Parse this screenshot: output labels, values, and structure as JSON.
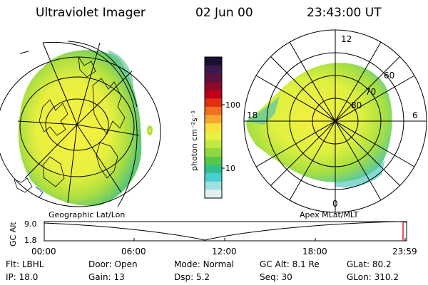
{
  "header": {
    "instrument": "Ultraviolet Imager",
    "date": "02 Jun 00",
    "time": "23:43:00 UT"
  },
  "colorbar": {
    "unit_label": "photon cm⁻²s⁻¹",
    "ticks": [
      "100",
      "10"
    ],
    "colors": [
      "#1a1030",
      "#3a1a50",
      "#5a1040",
      "#8a0a28",
      "#c00018",
      "#e03010",
      "#f07020",
      "#f8a830",
      "#f8e040",
      "#e8f040",
      "#c0e840",
      "#90d840",
      "#58c848",
      "#30c090",
      "#48d0d0",
      "#a0e0e0",
      "#e0f0f0"
    ]
  },
  "maps": {
    "left_caption": "Geographic Lat/Lon",
    "right_caption": "Apex MLat/MLT",
    "mlt_labels": [
      "12",
      "18",
      "6",
      "0"
    ],
    "mlat_labels": [
      "60",
      "70",
      "80"
    ]
  },
  "altitude_plot": {
    "ylabel": "GC Alt",
    "yticks": [
      "9.0",
      "1.8"
    ],
    "xticks": [
      "00:00",
      "06:00",
      "12:00",
      "18:00",
      "23:59"
    ]
  },
  "info": {
    "row1": [
      {
        "key": "Flt:",
        "value": "LBHL"
      },
      {
        "key": "Door:",
        "value": "Open"
      },
      {
        "key": "Mode:",
        "value": "Normal"
      },
      {
        "key": "GC Alt:",
        "value": "8.1 Re"
      },
      {
        "key": "GLat:",
        "value": "80.2"
      }
    ],
    "row2": [
      {
        "key": "IP:",
        "value": "18.0"
      },
      {
        "key": "Gain:",
        "value": "13"
      },
      {
        "key": "Dsp:",
        "value": "5.2"
      },
      {
        "key": "Seq:",
        "value": "30"
      },
      {
        "key": "GLon:",
        "value": "310.2"
      }
    ]
  }
}
